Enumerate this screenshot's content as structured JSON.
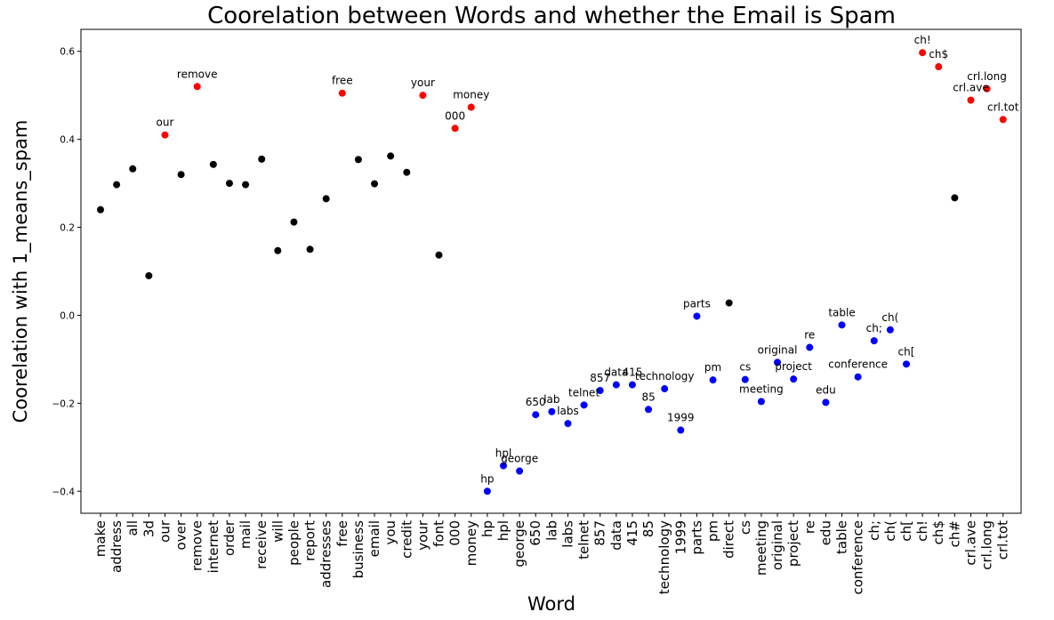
{
  "chart_data": {
    "type": "scatter",
    "title": "Coorelation between Words and whether the Email is Spam",
    "xlabel": "Word",
    "ylabel": "Coorelation with 1_means_spam",
    "ylim": [
      -0.45,
      0.65
    ],
    "yticks": [
      -0.4,
      -0.2,
      0.0,
      0.2,
      0.4,
      0.6
    ],
    "ytick_labels": [
      "−0.4",
      "−0.2",
      "0.0",
      "0.2",
      "0.4",
      "0.6"
    ],
    "grid": false,
    "colors": {
      "positive": "#ff0000",
      "negative": "#0000ff",
      "neutral": "#000000"
    },
    "points": [
      {
        "word": "make",
        "y": 0.24,
        "group": "neutral",
        "annotated": false
      },
      {
        "word": "address",
        "y": 0.297,
        "group": "neutral",
        "annotated": false
      },
      {
        "word": "all",
        "y": 0.333,
        "group": "neutral",
        "annotated": false
      },
      {
        "word": "3d",
        "y": 0.09,
        "group": "neutral",
        "annotated": false
      },
      {
        "word": "our",
        "y": 0.41,
        "group": "positive",
        "annotated": true
      },
      {
        "word": "over",
        "y": 0.32,
        "group": "neutral",
        "annotated": false
      },
      {
        "word": "remove",
        "y": 0.52,
        "group": "positive",
        "annotated": true
      },
      {
        "word": "internet",
        "y": 0.343,
        "group": "neutral",
        "annotated": false
      },
      {
        "word": "order",
        "y": 0.3,
        "group": "neutral",
        "annotated": false
      },
      {
        "word": "mail",
        "y": 0.297,
        "group": "neutral",
        "annotated": false
      },
      {
        "word": "receive",
        "y": 0.355,
        "group": "neutral",
        "annotated": false
      },
      {
        "word": "will",
        "y": 0.147,
        "group": "neutral",
        "annotated": false
      },
      {
        "word": "people",
        "y": 0.212,
        "group": "neutral",
        "annotated": false
      },
      {
        "word": "report",
        "y": 0.15,
        "group": "neutral",
        "annotated": false
      },
      {
        "word": "addresses",
        "y": 0.265,
        "group": "neutral",
        "annotated": false
      },
      {
        "word": "free",
        "y": 0.505,
        "group": "positive",
        "annotated": true
      },
      {
        "word": "business",
        "y": 0.354,
        "group": "neutral",
        "annotated": false
      },
      {
        "word": "email",
        "y": 0.299,
        "group": "neutral",
        "annotated": false
      },
      {
        "word": "you",
        "y": 0.362,
        "group": "neutral",
        "annotated": false
      },
      {
        "word": "credit",
        "y": 0.325,
        "group": "neutral",
        "annotated": false
      },
      {
        "word": "your",
        "y": 0.5,
        "group": "positive",
        "annotated": true
      },
      {
        "word": "font",
        "y": 0.137,
        "group": "neutral",
        "annotated": false
      },
      {
        "word": "000",
        "y": 0.425,
        "group": "positive",
        "annotated": true
      },
      {
        "word": "money",
        "y": 0.473,
        "group": "positive",
        "annotated": true
      },
      {
        "word": "hp",
        "y": -0.4,
        "group": "negative",
        "annotated": true
      },
      {
        "word": "hpl",
        "y": -0.342,
        "group": "negative",
        "annotated": true
      },
      {
        "word": "george",
        "y": -0.354,
        "group": "negative",
        "annotated": true
      },
      {
        "word": "650",
        "y": -0.226,
        "group": "negative",
        "annotated": true
      },
      {
        "word": "lab",
        "y": -0.219,
        "group": "negative",
        "annotated": true
      },
      {
        "word": "labs",
        "y": -0.246,
        "group": "negative",
        "annotated": true
      },
      {
        "word": "telnet",
        "y": -0.204,
        "group": "negative",
        "annotated": true
      },
      {
        "word": "857",
        "y": -0.171,
        "group": "negative",
        "annotated": true
      },
      {
        "word": "data",
        "y": -0.158,
        "group": "negative",
        "annotated": true
      },
      {
        "word": "415",
        "y": -0.158,
        "group": "negative",
        "annotated": true
      },
      {
        "word": "85",
        "y": -0.214,
        "group": "negative",
        "annotated": true
      },
      {
        "word": "technology",
        "y": -0.167,
        "group": "negative",
        "annotated": true
      },
      {
        "word": "1999",
        "y": -0.261,
        "group": "negative",
        "annotated": true
      },
      {
        "word": "parts",
        "y": -0.002,
        "group": "negative",
        "annotated": true
      },
      {
        "word": "pm",
        "y": -0.147,
        "group": "negative",
        "annotated": true
      },
      {
        "word": "direct",
        "y": 0.028,
        "group": "neutral",
        "annotated": false
      },
      {
        "word": "cs",
        "y": -0.146,
        "group": "negative",
        "annotated": true
      },
      {
        "word": "meeting",
        "y": -0.196,
        "group": "negative",
        "annotated": true
      },
      {
        "word": "original",
        "y": -0.107,
        "group": "negative",
        "annotated": true
      },
      {
        "word": "project",
        "y": -0.145,
        "group": "negative",
        "annotated": true
      },
      {
        "word": "re",
        "y": -0.073,
        "group": "negative",
        "annotated": true
      },
      {
        "word": "edu",
        "y": -0.198,
        "group": "negative",
        "annotated": true
      },
      {
        "word": "table",
        "y": -0.022,
        "group": "negative",
        "annotated": true
      },
      {
        "word": "conference",
        "y": -0.14,
        "group": "negative",
        "annotated": true
      },
      {
        "word": "ch;",
        "y": -0.058,
        "group": "negative",
        "annotated": true
      },
      {
        "word": "ch(",
        "y": -0.033,
        "group": "negative",
        "annotated": true
      },
      {
        "word": "ch[",
        "y": -0.111,
        "group": "negative",
        "annotated": true
      },
      {
        "word": "ch!",
        "y": 0.597,
        "group": "positive",
        "annotated": true
      },
      {
        "word": "ch$",
        "y": 0.565,
        "group": "positive",
        "annotated": true
      },
      {
        "word": "ch#",
        "y": 0.267,
        "group": "neutral",
        "annotated": false
      },
      {
        "word": "crl.ave",
        "y": 0.489,
        "group": "positive",
        "annotated": true
      },
      {
        "word": "crl.long",
        "y": 0.515,
        "group": "positive",
        "annotated": true
      },
      {
        "word": "crl.tot",
        "y": 0.445,
        "group": "positive",
        "annotated": true
      }
    ]
  }
}
